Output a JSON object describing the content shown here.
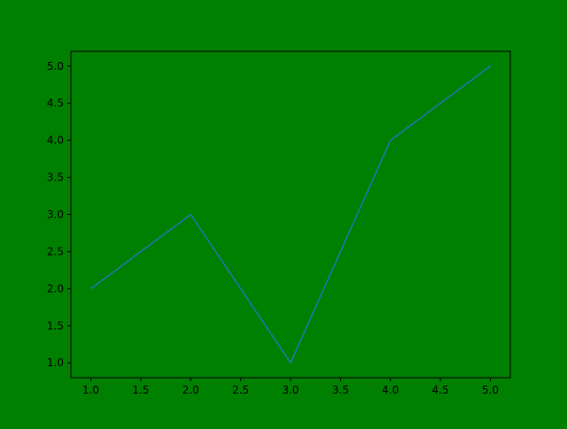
{
  "colors": {
    "figure_background": "#008000",
    "axes_background": "#008000",
    "line": "#1f77b4",
    "axes_edge": "#000000",
    "text": "#000000"
  },
  "chart_data": {
    "type": "line",
    "title": "",
    "xlabel": "",
    "ylabel": "",
    "xlim": [
      0.8,
      5.2
    ],
    "ylim": [
      0.8,
      5.2
    ],
    "xticks": [
      1.0,
      1.5,
      2.0,
      2.5,
      3.0,
      3.5,
      4.0,
      4.5,
      5.0
    ],
    "yticks": [
      1.0,
      1.5,
      2.0,
      2.5,
      3.0,
      3.5,
      4.0,
      4.5,
      5.0
    ],
    "tick_format_decimals": 1,
    "grid": false,
    "legend": "none",
    "series": [
      {
        "x": [
          1,
          2,
          3,
          4,
          5
        ],
        "y": [
          2,
          3,
          1,
          4,
          5
        ]
      }
    ]
  }
}
